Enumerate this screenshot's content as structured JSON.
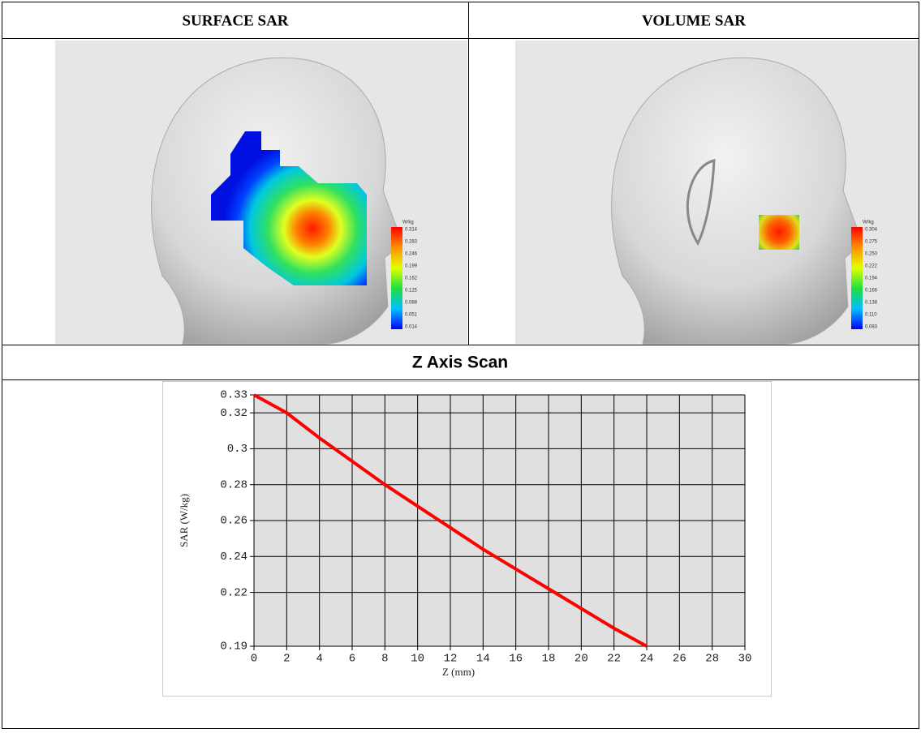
{
  "header": {
    "columns": [
      "SURFACE SAR",
      "VOLUME SAR"
    ]
  },
  "images": [
    {
      "colorbar": {
        "unit": "W/kg",
        "labels": [
          "0.314",
          "0.283",
          "0.246",
          "0.199",
          "0.162",
          "0.125",
          "0.088",
          "0.051",
          "0.014"
        ]
      }
    },
    {
      "colorbar": {
        "unit": "W/kg",
        "labels": [
          "0.304",
          "0.275",
          "0.250",
          "0.222",
          "0.194",
          "0.166",
          "0.138",
          "0.110",
          "0.083"
        ]
      }
    }
  ],
  "section_title": "Z Axis Scan",
  "chart_data": {
    "type": "line",
    "x": [
      0,
      2,
      4,
      6,
      8,
      10,
      12,
      14,
      16,
      18,
      20,
      22,
      24
    ],
    "values": [
      0.33,
      0.32,
      0.306,
      0.293,
      0.28,
      0.268,
      0.256,
      0.244,
      0.233,
      0.222,
      0.211,
      0.2,
      0.19
    ],
    "color": "#ff0000",
    "xlim": [
      0,
      30
    ],
    "ylim": [
      0.19,
      0.33
    ],
    "xticks": [
      0,
      2,
      4,
      6,
      8,
      10,
      12,
      14,
      16,
      18,
      20,
      22,
      24,
      26,
      28,
      30
    ],
    "yticks": [
      0.19,
      0.22,
      0.24,
      0.26,
      0.28,
      0.3,
      0.32,
      0.33
    ],
    "xlabel": "Z (mm)",
    "ylabel": "SAR (W/kg)",
    "grid": true
  }
}
